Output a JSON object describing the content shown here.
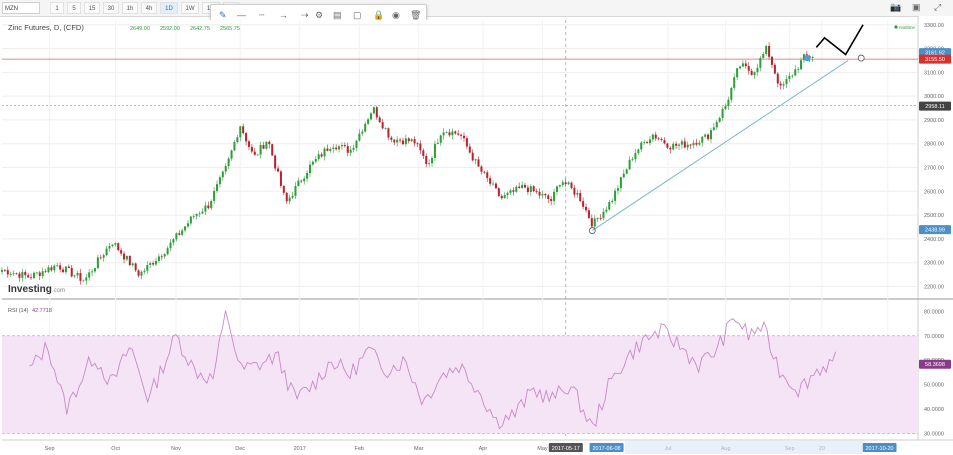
{
  "toolbar": {
    "symbol": "MZN",
    "timeframes": [
      "1",
      "5",
      "15",
      "30",
      "1h",
      "4h",
      "1D",
      "1W",
      "1M",
      "15"
    ],
    "active_timeframe": "1D"
  },
  "drawing_tools": [
    "pencil-icon",
    "line-solid-icon",
    "line-dashed-icon",
    "line-arrow-icon",
    "line-ray-icon",
    "gear-icon",
    "layers-icon",
    "square-icon",
    "lock-icon",
    "eye-icon",
    "trash-icon"
  ],
  "top_right_icons": [
    "camera-icon",
    "layout-icon",
    "expand-icon"
  ],
  "colors": {
    "up": "#2e9e3a",
    "down": "#b5252f",
    "trendline": "#7ab8c9",
    "resistance": "#e05b6a",
    "rsi_line": "#c78ac7",
    "rsi_band": "#f5e4f5",
    "label_red": "#d9302e",
    "label_blue": "#4a8fc7",
    "label_dark": "#444444",
    "label_purple": "#8b3a8b"
  },
  "chart_data": [
    {
      "type": "candlestick",
      "title": "Zinc Futures, D, (CFD)",
      "ohlc_readout": {
        "open": "2649.00",
        "high": "2592.00",
        "low": "2642.75",
        "close": "2565.75"
      },
      "logo": "Investing",
      "logo_suffix": ".com",
      "x_ticks": [
        "Sep",
        "Oct",
        "Nov",
        "Dec",
        "2017",
        "Feb",
        "Mar",
        "Apr",
        "May",
        "Jul",
        "Aug",
        "Sep",
        "20",
        "Nov"
      ],
      "x_highlights": [
        "2017-05-17",
        "2017-06-08",
        "2017-10-20"
      ],
      "y_ticks": [
        3300,
        3200,
        3100,
        3000,
        2900,
        2800,
        2700,
        2600,
        2500,
        2400,
        2300,
        2200
      ],
      "y_tick_labels": [
        "3300.00",
        "3200.00",
        "3100.00",
        "3000.00",
        "2900.00",
        "2800.00",
        "2700.00",
        "2600.00",
        "2500.00",
        "2400.00",
        "2300.00",
        "2200.00"
      ],
      "ylim": [
        2160,
        3320
      ],
      "price_labels": [
        {
          "text": "3161.92",
          "value": 3161.92,
          "style": "blue"
        },
        {
          "text": "3155.50",
          "value": 3155.5,
          "style": "red"
        },
        {
          "text": "2958.11",
          "value": 2958.11,
          "style": "dark"
        },
        {
          "text": "2438.99",
          "value": 2438.99,
          "style": "blue"
        }
      ],
      "resistance_level": 3155.5,
      "dashed_level": 2960,
      "top_right_label": "realtime",
      "trendline": {
        "start": [
          0.6444,
          2435
        ],
        "end": [
          0.9237,
          3150
        ]
      },
      "projection": [
        [
          0.889,
          3205
        ],
        [
          0.898,
          3245
        ],
        [
          0.921,
          3175
        ],
        [
          0.94,
          3300
        ]
      ],
      "projection_circle": [
        0.938,
        3160
      ],
      "candles_count": 280,
      "anchors": [
        [
          0.0,
          2270
        ],
        [
          0.03,
          2240
        ],
        [
          0.06,
          2290
        ],
        [
          0.09,
          2225
        ],
        [
          0.12,
          2390
        ],
        [
          0.15,
          2250
        ],
        [
          0.18,
          2360
        ],
        [
          0.21,
          2500
        ],
        [
          0.225,
          2540
        ],
        [
          0.245,
          2700
        ],
        [
          0.26,
          2880
        ],
        [
          0.275,
          2740
        ],
        [
          0.29,
          2820
        ],
        [
          0.31,
          2550
        ],
        [
          0.335,
          2700
        ],
        [
          0.36,
          2800
        ],
        [
          0.38,
          2770
        ],
        [
          0.405,
          2950
        ],
        [
          0.425,
          2820
        ],
        [
          0.45,
          2810
        ],
        [
          0.465,
          2710
        ],
        [
          0.48,
          2860
        ],
        [
          0.5,
          2840
        ],
        [
          0.52,
          2700
        ],
        [
          0.545,
          2570
        ],
        [
          0.57,
          2620
        ],
        [
          0.6,
          2560
        ],
        [
          0.61,
          2650
        ],
        [
          0.63,
          2580
        ],
        [
          0.645,
          2460
        ],
        [
          0.665,
          2560
        ],
        [
          0.69,
          2760
        ],
        [
          0.71,
          2840
        ],
        [
          0.73,
          2790
        ],
        [
          0.75,
          2800
        ],
        [
          0.77,
          2830
        ],
        [
          0.79,
          2960
        ],
        [
          0.805,
          3130
        ],
        [
          0.82,
          3100
        ],
        [
          0.835,
          3200
        ],
        [
          0.85,
          3030
        ],
        [
          0.87,
          3130
        ],
        [
          0.875,
          3160
        ],
        [
          0.885,
          3170
        ]
      ]
    },
    {
      "type": "line",
      "indicator": "RSI (14)",
      "current_value": "42.7718",
      "last_label": "58.3698",
      "y_ticks": [
        80,
        70,
        60,
        50,
        40,
        30
      ],
      "y_tick_labels": [
        "80.0000",
        "70.0000",
        "60.0000",
        "50.0000",
        "40.0000",
        "30.0000"
      ],
      "ylim": [
        29,
        83
      ],
      "overbought": 70,
      "oversold": 30,
      "anchors": [
        [
          0.03,
          56
        ],
        [
          0.05,
          66
        ],
        [
          0.07,
          40
        ],
        [
          0.1,
          62
        ],
        [
          0.12,
          50
        ],
        [
          0.14,
          66
        ],
        [
          0.16,
          44
        ],
        [
          0.19,
          70
        ],
        [
          0.21,
          56
        ],
        [
          0.23,
          52
        ],
        [
          0.245,
          80
        ],
        [
          0.26,
          56
        ],
        [
          0.28,
          58
        ],
        [
          0.3,
          62
        ],
        [
          0.32,
          44
        ],
        [
          0.34,
          50
        ],
        [
          0.36,
          60
        ],
        [
          0.38,
          54
        ],
        [
          0.4,
          64
        ],
        [
          0.42,
          56
        ],
        [
          0.44,
          60
        ],
        [
          0.46,
          43
        ],
        [
          0.48,
          54
        ],
        [
          0.5,
          58
        ],
        [
          0.52,
          48
        ],
        [
          0.54,
          35
        ],
        [
          0.56,
          38
        ],
        [
          0.58,
          48
        ],
        [
          0.6,
          44
        ],
        [
          0.62,
          50
        ],
        [
          0.645,
          32
        ],
        [
          0.66,
          48
        ],
        [
          0.68,
          60
        ],
        [
          0.7,
          68
        ],
        [
          0.72,
          72
        ],
        [
          0.74,
          66
        ],
        [
          0.76,
          58
        ],
        [
          0.78,
          64
        ],
        [
          0.8,
          78
        ],
        [
          0.815,
          70
        ],
        [
          0.83,
          74
        ],
        [
          0.85,
          55
        ],
        [
          0.87,
          48
        ],
        [
          0.89,
          56
        ],
        [
          0.91,
          60
        ]
      ]
    }
  ]
}
